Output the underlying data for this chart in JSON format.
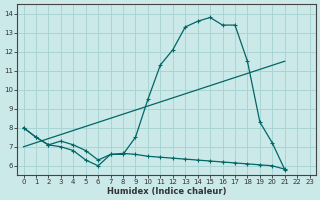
{
  "xlabel": "Humidex (Indice chaleur)",
  "xlim": [
    -0.5,
    23.5
  ],
  "ylim": [
    5.5,
    14.5
  ],
  "xticks": [
    0,
    1,
    2,
    3,
    4,
    5,
    6,
    7,
    8,
    9,
    10,
    11,
    12,
    13,
    14,
    15,
    16,
    17,
    18,
    19,
    20,
    21,
    22,
    23
  ],
  "yticks": [
    6,
    7,
    8,
    9,
    10,
    11,
    12,
    13,
    14
  ],
  "bg_color": "#cce9e9",
  "grid_color": "#aad4d4",
  "line_color": "#006666",
  "line1_x": [
    0,
    1,
    2,
    3,
    4,
    5,
    6,
    7,
    8,
    9,
    10,
    11,
    12,
    13,
    14,
    15,
    16,
    17,
    18,
    19,
    20,
    21
  ],
  "line1_y": [
    8.0,
    7.5,
    7.1,
    7.0,
    6.8,
    6.3,
    6.0,
    6.6,
    6.6,
    7.5,
    9.5,
    11.3,
    12.1,
    13.3,
    13.6,
    13.8,
    13.4,
    13.4,
    11.5,
    8.3,
    7.2,
    5.8
  ],
  "line2_x": [
    0,
    21
  ],
  "line2_y": [
    7.0,
    11.5
  ],
  "line3_x": [
    0,
    1,
    2,
    3,
    4,
    5,
    6,
    7,
    8,
    9,
    10,
    11,
    12,
    13,
    14,
    15,
    16,
    17,
    18,
    19,
    20,
    21
  ],
  "line3_y": [
    8.0,
    7.5,
    7.1,
    7.3,
    7.1,
    6.8,
    6.3,
    6.6,
    6.65,
    6.6,
    6.5,
    6.45,
    6.4,
    6.35,
    6.3,
    6.25,
    6.2,
    6.15,
    6.1,
    6.05,
    6.0,
    5.82
  ]
}
